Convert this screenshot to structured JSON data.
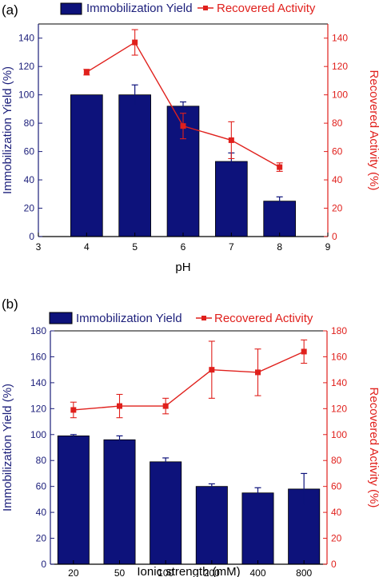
{
  "colors": {
    "bar": "#0d127b",
    "bar_edge": "#000000",
    "line": "#e0201c",
    "left_axis": "#1b1e7a",
    "right_axis": "#e0201c",
    "frame": "#000000",
    "bottom_axis": "#000000"
  },
  "chart_data": [
    {
      "panel_label": "(a)",
      "type": "bar+line",
      "xlabel": "pH",
      "ylabel": "Immobilization Yield (%)",
      "y2label": "Recovered Activity (%)",
      "x_axis": "numeric",
      "xlim": [
        3,
        9
      ],
      "x_ticks": [
        3,
        4,
        5,
        6,
        7,
        8,
        9
      ],
      "x_tick_labels": [
        "3",
        "4",
        "5",
        "6",
        "7",
        "8",
        "9"
      ],
      "ylim": [
        0,
        150
      ],
      "y_ticks": [
        0,
        20,
        40,
        60,
        80,
        100,
        120,
        140
      ],
      "y2lim": [
        0,
        150
      ],
      "y2_ticks": [
        0,
        20,
        40,
        60,
        80,
        100,
        120,
        140
      ],
      "legend": [
        "Immobilization Yield",
        "Recovered Activity"
      ],
      "legend_position": "top",
      "series": [
        {
          "name": "Immobilization Yield",
          "kind": "bar",
          "axis": "left",
          "x": [
            4,
            5,
            6,
            7,
            8
          ],
          "values": [
            100,
            100,
            92,
            53,
            25
          ],
          "errors": [
            0,
            7,
            3,
            6,
            3
          ]
        },
        {
          "name": "Recovered Activity",
          "kind": "line",
          "axis": "right",
          "x": [
            4,
            5,
            6,
            7,
            8
          ],
          "values": [
            116,
            137,
            78,
            68,
            49
          ],
          "errors": [
            2,
            9,
            9,
            13,
            3
          ]
        }
      ]
    },
    {
      "panel_label": "(b)",
      "type": "bar+line",
      "xlabel": "Ionic strength (mM)",
      "ylabel": "Immobilization Yield (%)",
      "y2label": "Recovered Activity (%)",
      "x_axis": "categorical",
      "categories": [
        "20",
        "50",
        "100",
        "200",
        "400",
        "800"
      ],
      "ylim": [
        0,
        180
      ],
      "y_ticks": [
        0,
        20,
        40,
        60,
        80,
        100,
        120,
        140,
        160,
        180
      ],
      "y2lim": [
        0,
        180
      ],
      "y2_ticks": [
        0,
        20,
        40,
        60,
        80,
        100,
        120,
        140,
        160,
        180
      ],
      "legend": [
        "Immobilization Yield",
        "Recovered Activity"
      ],
      "legend_position": "top",
      "series": [
        {
          "name": "Immobilization Yield",
          "kind": "bar",
          "axis": "left",
          "values": [
            99,
            96,
            79,
            60,
            55,
            58
          ],
          "errors": [
            1,
            3,
            3,
            2,
            4,
            12
          ]
        },
        {
          "name": "Recovered Activity",
          "kind": "line",
          "axis": "right",
          "values": [
            119,
            122,
            122,
            150,
            148,
            164
          ],
          "errors": [
            6,
            9,
            6,
            22,
            18,
            9
          ]
        }
      ]
    }
  ]
}
